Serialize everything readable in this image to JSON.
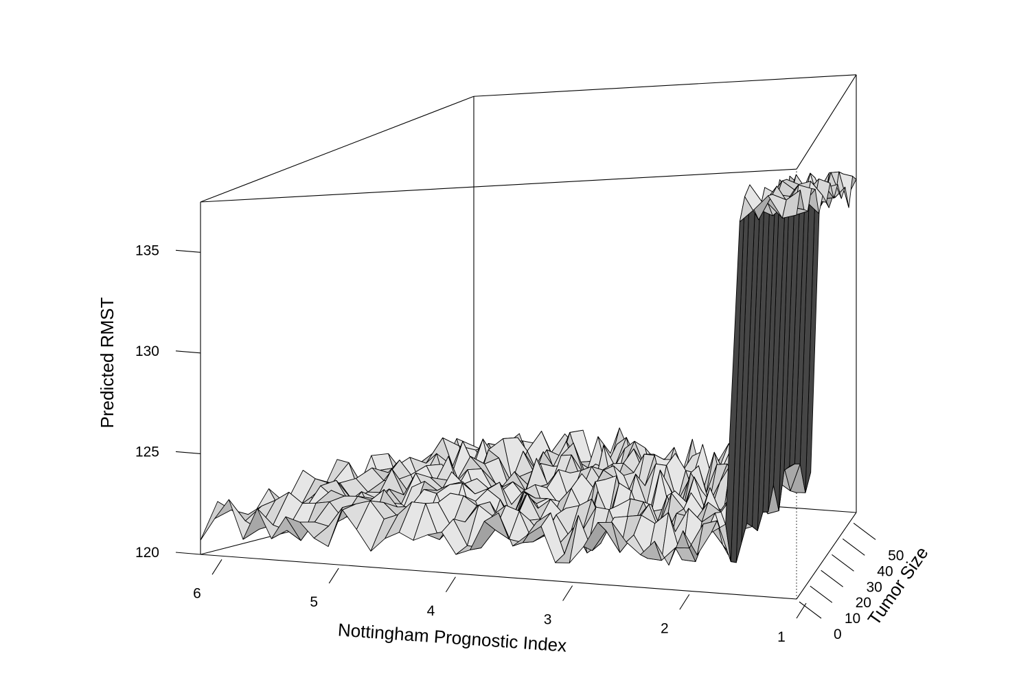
{
  "chart_data": {
    "type": "surface3d",
    "title": "",
    "zlabel": "Predicted RMST",
    "xlabel": "Nottingham Prognostic Index",
    "ylabel": "Tumor Size",
    "z_ticks": [
      120,
      125,
      130,
      135
    ],
    "x_ticks": [
      6,
      5,
      4,
      3,
      2,
      1
    ],
    "y_ticks": [
      0,
      10,
      20,
      30,
      40,
      50
    ],
    "z_range": [
      120,
      137.5
    ],
    "x_range": [
      6.1,
      1
    ],
    "y_range": [
      0,
      55
    ],
    "description_values": {
      "baseline_rmst_level": 121.8,
      "peak_rmst_level": 136.2,
      "high_region_npi_below": 1.6
    },
    "shading": "grayscale"
  }
}
